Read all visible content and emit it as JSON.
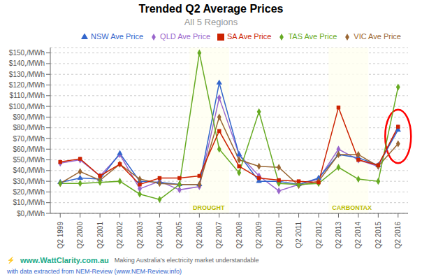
{
  "chart_data": {
    "type": "line",
    "title": "Trended Q2 Average Prices",
    "subtitle": "All 5 Regions",
    "categories": [
      "Q2 1999",
      "Q2 2000",
      "Q2 2001",
      "Q2 2002",
      "Q2 2003",
      "Q2 2004",
      "Q2 2005",
      "Q2 2006",
      "Q2 2007",
      "Q2 2008",
      "Q2 2009",
      "Q2 2010",
      "Q2 2011",
      "Q2 2012",
      "Q2 2013",
      "Q2 2014",
      "Q2 2015",
      "Q2 2016"
    ],
    "series": [
      {
        "name": "QLD Ave Price",
        "color": "#9966cc",
        "marker": "diamond",
        "values": [
          47,
          50,
          35,
          55,
          23,
          30,
          22,
          25,
          108,
          55,
          35,
          21,
          27,
          32,
          60,
          50,
          44,
          80
        ]
      },
      {
        "name": "NSW Ave Price",
        "color": "#3366cc",
        "marker": "triangle",
        "values": [
          29,
          33,
          32,
          56,
          30,
          29,
          27,
          27,
          122,
          55,
          30,
          30,
          27,
          33,
          55,
          52,
          45,
          78
        ]
      },
      {
        "name": "VIC Ave Price",
        "color": "#996633",
        "marker": "diamond",
        "values": [
          28,
          39,
          31,
          46,
          32,
          28,
          27,
          27,
          90,
          50,
          44,
          43,
          26,
          30,
          55,
          55,
          44,
          65
        ]
      },
      {
        "name": "TAS Ave Price",
        "color": "#66aa22",
        "marker": "diamond",
        "values": [
          28,
          28,
          29,
          30,
          18,
          13,
          27,
          150,
          60,
          38,
          95,
          28,
          27,
          28,
          43,
          32,
          30,
          118
        ]
      },
      {
        "name": "SA Ave Price",
        "color": "#cc2200",
        "marker": "square",
        "values": [
          48,
          51,
          35,
          46,
          27,
          33,
          33,
          35,
          77,
          44,
          33,
          31,
          30,
          29,
          99,
          50,
          45,
          81
        ]
      }
    ],
    "ylim": [
      0,
      155
    ],
    "yticks": [
      {
        "value": 0,
        "label": "$0,/MWh"
      },
      {
        "value": 10,
        "label": "$10,/MWh"
      },
      {
        "value": 20,
        "label": "$20,/MWh"
      },
      {
        "value": 30,
        "label": "$30,/MWh"
      },
      {
        "value": 40,
        "label": "$40,/MWh"
      },
      {
        "value": 50,
        "label": "$50,/MWh"
      },
      {
        "value": 60,
        "label": "$60,/MWh"
      },
      {
        "value": 70,
        "label": "$70,/MWh"
      },
      {
        "value": 80,
        "label": "$80,/MWh"
      },
      {
        "value": 90,
        "label": "$90,/MWh"
      },
      {
        "value": 100,
        "label": "$100,/MWh"
      },
      {
        "value": 110,
        "label": "$110,/MWh"
      },
      {
        "value": 120,
        "label": "$120,/MWh"
      },
      {
        "value": 130,
        "label": "$130,/MWh"
      },
      {
        "value": 140,
        "label": "$140,/MWh"
      },
      {
        "value": 150,
        "label": "$150,/MWh"
      }
    ],
    "grid": true,
    "legend": "upper right",
    "annotations": [
      {
        "text": "DROUGHT",
        "x_start": "Q2 2006",
        "x_end": "Q2 2007",
        "color": "#bbbb00",
        "fill": "#fffff0"
      },
      {
        "text": "CARBONTAX",
        "x_start": "Q2 2013",
        "x_end": "Q2 2014",
        "color": "#bbbb00",
        "fill": "#fffff0"
      },
      {
        "shape": "ellipse",
        "x": "Q2 2016",
        "y": 72,
        "width": 1.3,
        "height": 50,
        "color": "red"
      },
      {
        "text": "⚡",
        "color": "#22aa88"
      },
      {
        "text": "www.WattClarity.com.au",
        "color": "#22aa88"
      },
      {
        "text": "Making Australia's electricity market understandable",
        "color": "#666666"
      },
      {
        "text": "with data extracted from NEM-Review (www.NEM-Review.info)",
        "color": "#3366cc"
      }
    ]
  }
}
